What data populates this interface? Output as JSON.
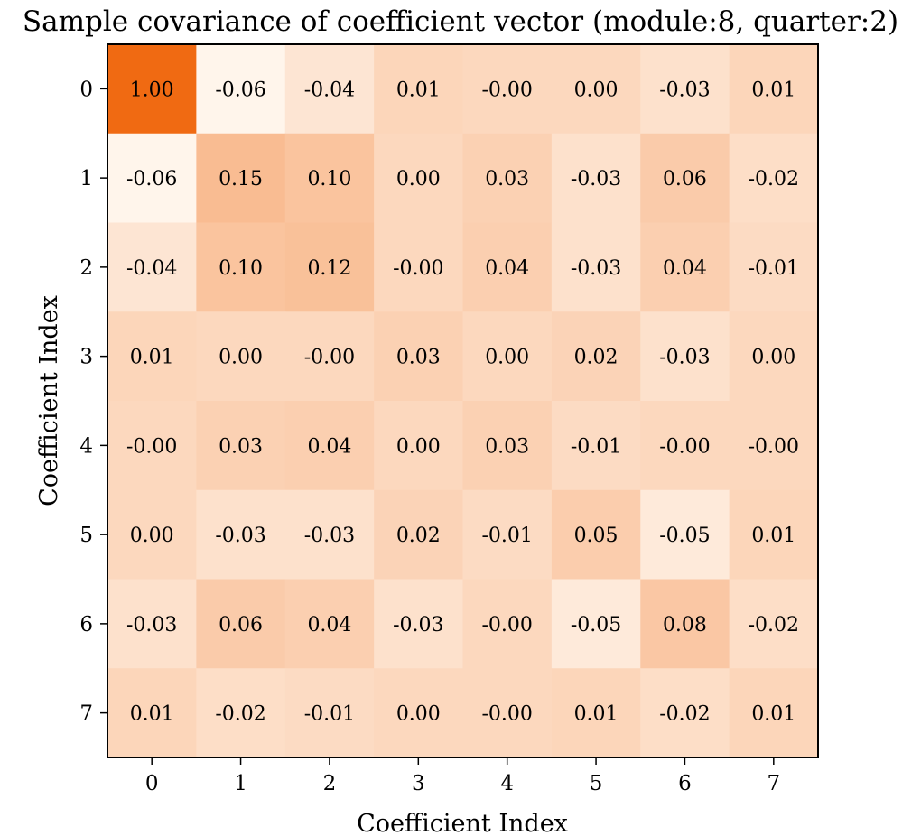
{
  "chart_data": {
    "type": "heatmap",
    "title": "Sample covariance of coefficient vector (module:8, quarter:2)",
    "xlabel": "Coefficient Index",
    "ylabel": "Coefficient Index",
    "x_ticks": [
      "0",
      "1",
      "2",
      "3",
      "4",
      "5",
      "6",
      "7"
    ],
    "y_ticks": [
      "0",
      "1",
      "2",
      "3",
      "4",
      "5",
      "6",
      "7"
    ],
    "values": [
      [
        1.0,
        -0.06,
        -0.04,
        0.01,
        -0.0,
        0.0,
        -0.03,
        0.01
      ],
      [
        -0.06,
        0.15,
        0.1,
        0.0,
        0.03,
        -0.03,
        0.06,
        -0.02
      ],
      [
        -0.04,
        0.1,
        0.12,
        -0.0,
        0.04,
        -0.03,
        0.04,
        -0.01
      ],
      [
        0.01,
        0.0,
        -0.0,
        0.03,
        0.0,
        0.02,
        -0.03,
        0.0
      ],
      [
        -0.0,
        0.03,
        0.04,
        0.0,
        0.03,
        -0.01,
        -0.0,
        -0.0
      ],
      [
        0.0,
        -0.03,
        -0.03,
        0.02,
        -0.01,
        0.05,
        -0.05,
        0.01
      ],
      [
        -0.03,
        0.06,
        0.04,
        -0.03,
        -0.0,
        -0.05,
        0.08,
        -0.02
      ],
      [
        0.01,
        -0.02,
        -0.01,
        0.0,
        -0.0,
        0.01,
        -0.02,
        0.01
      ]
    ],
    "value_labels": [
      [
        "1.00",
        "-0.06",
        "-0.04",
        "0.01",
        "-0.00",
        "0.00",
        "-0.03",
        "0.01"
      ],
      [
        "-0.06",
        "0.15",
        "0.10",
        "0.00",
        "0.03",
        "-0.03",
        "0.06",
        "-0.02"
      ],
      [
        "-0.04",
        "0.10",
        "0.12",
        "-0.00",
        "0.04",
        "-0.03",
        "0.04",
        "-0.01"
      ],
      [
        "0.01",
        "0.00",
        "-0.00",
        "0.03",
        "0.00",
        "0.02",
        "-0.03",
        "0.00"
      ],
      [
        "-0.00",
        "0.03",
        "0.04",
        "0.00",
        "0.03",
        "-0.01",
        "-0.00",
        "-0.00"
      ],
      [
        "0.00",
        "-0.03",
        "-0.03",
        "0.02",
        "-0.01",
        "0.05",
        "-0.05",
        "0.01"
      ],
      [
        "-0.03",
        "0.06",
        "0.04",
        "-0.03",
        "-0.00",
        "-0.05",
        "0.08",
        "-0.02"
      ],
      [
        "0.01",
        "-0.02",
        "-0.01",
        "0.00",
        "-0.00",
        "0.01",
        "-0.02",
        "0.01"
      ]
    ],
    "colormap": {
      "low": "#fff5eb",
      "high": "#f06a12"
    },
    "grid": false,
    "legend": "none"
  }
}
